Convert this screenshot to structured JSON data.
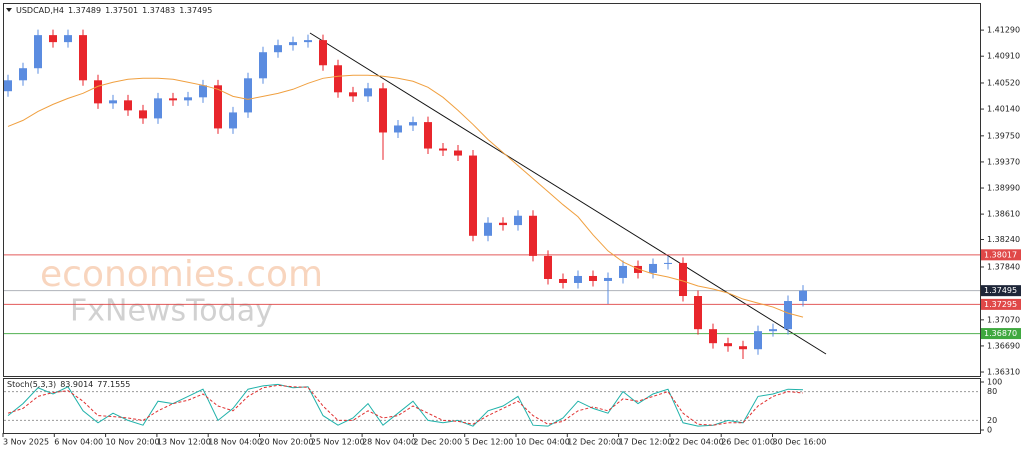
{
  "chart_data": {
    "type": "candlestick",
    "symbol": "USDCAD,H4",
    "quote": [
      1.37489,
      1.37501,
      1.37483,
      1.37495
    ],
    "ylim": [
      1.36252,
      1.41612
    ],
    "yticks": [
      {
        "value": 1.4129,
        "label": "1.41290"
      },
      {
        "value": 1.4091,
        "label": "1.40910"
      },
      {
        "value": 1.4052,
        "label": "1.40520"
      },
      {
        "value": 1.4014,
        "label": "1.40140"
      },
      {
        "value": 1.3975,
        "label": "1.39750"
      },
      {
        "value": 1.3937,
        "label": "1.39370"
      },
      {
        "value": 1.3899,
        "label": "1.38990"
      },
      {
        "value": 1.3861,
        "label": "1.38610"
      },
      {
        "value": 1.3824,
        "label": "1.38240"
      },
      {
        "value": 1.3784,
        "label": "1.37840"
      },
      {
        "value": 1.3707,
        "label": "1.37070"
      },
      {
        "value": 1.3669,
        "label": "1.36690"
      },
      {
        "value": 1.3631,
        "label": "1.36310"
      }
    ],
    "up_color": "#5b8ce0",
    "down_color": "#e8262c",
    "ohlc": [
      [
        1.404,
        1.40639,
        1.4032,
        1.40559
      ],
      [
        1.40559,
        1.40815,
        1.40479,
        1.40735
      ],
      [
        1.40735,
        1.41297,
        1.40655,
        1.41217
      ],
      [
        1.41217,
        1.41297,
        1.41035,
        1.41115
      ],
      [
        1.41115,
        1.41297,
        1.41035,
        1.41217
      ],
      [
        1.41217,
        1.41297,
        1.40479,
        1.40559
      ],
      [
        1.40559,
        1.40639,
        1.40143,
        1.40223
      ],
      [
        1.40223,
        1.40347,
        1.40143,
        1.40267
      ],
      [
        1.40267,
        1.40347,
        1.40041,
        1.40121
      ],
      [
        1.40121,
        1.40201,
        1.39924,
        1.40004
      ],
      [
        1.40004,
        1.40376,
        1.39924,
        1.40296
      ],
      [
        1.40296,
        1.40376,
        1.40187,
        1.40267
      ],
      [
        1.40267,
        1.40391,
        1.40187,
        1.40311
      ],
      [
        1.40311,
        1.40566,
        1.40231,
        1.40486
      ],
      [
        1.40486,
        1.40566,
        1.39778,
        1.39858
      ],
      [
        1.39858,
        1.40171,
        1.39778,
        1.40091
      ],
      [
        1.40091,
        1.40668,
        1.40011,
        1.40588
      ],
      [
        1.40588,
        1.41048,
        1.40508,
        1.40968
      ],
      [
        1.40968,
        1.41151,
        1.40888,
        1.41071
      ],
      [
        1.41071,
        1.41195,
        1.40991,
        1.41115
      ],
      [
        1.41115,
        1.41224,
        1.41035,
        1.41144
      ],
      [
        1.41144,
        1.41224,
        1.40698,
        1.40778
      ],
      [
        1.40778,
        1.40858,
        1.40304,
        1.40384
      ],
      [
        1.40384,
        1.40464,
        1.40245,
        1.40325
      ],
      [
        1.40325,
        1.40522,
        1.40245,
        1.40442
      ],
      [
        1.40442,
        1.40522,
        1.394,
        1.39799
      ],
      [
        1.39799,
        1.39981,
        1.39719,
        1.39901
      ],
      [
        1.39901,
        1.4003,
        1.39821,
        1.3995
      ],
      [
        1.3995,
        1.4003,
        1.39485,
        1.39565
      ],
      [
        1.39565,
        1.39645,
        1.39456,
        1.39536
      ],
      [
        1.39536,
        1.39616,
        1.39383,
        1.39463
      ],
      [
        1.39463,
        1.39543,
        1.38214,
        1.38294
      ],
      [
        1.38294,
        1.38564,
        1.38214,
        1.38484
      ],
      [
        1.38484,
        1.38564,
        1.3837,
        1.3845
      ],
      [
        1.3845,
        1.38666,
        1.3837,
        1.38586
      ],
      [
        1.38586,
        1.38666,
        1.37921,
        1.38001
      ],
      [
        1.38001,
        1.38081,
        1.37585,
        1.37665
      ],
      [
        1.37665,
        1.37745,
        1.37527,
        1.37607
      ],
      [
        1.37607,
        1.37789,
        1.37527,
        1.37709
      ],
      [
        1.37709,
        1.37789,
        1.37556,
        1.37636
      ],
      [
        1.37636,
        1.3776,
        1.373,
        1.3768
      ],
      [
        1.3768,
        1.37935,
        1.376,
        1.37855
      ],
      [
        1.37855,
        1.37935,
        1.37673,
        1.37753
      ],
      [
        1.37753,
        1.37964,
        1.37673,
        1.37884
      ],
      [
        1.37884,
        1.38,
        1.37804,
        1.37899
      ],
      [
        1.37899,
        1.37979,
        1.37337,
        1.37417
      ],
      [
        1.37417,
        1.37497,
        1.36854,
        1.36934
      ],
      [
        1.36934,
        1.37014,
        1.3665,
        1.3673
      ],
      [
        1.3673,
        1.3681,
        1.36606,
        1.36686
      ],
      [
        1.36686,
        1.36766,
        1.365,
        1.36642
      ],
      [
        1.36642,
        1.36985,
        1.36562,
        1.36905
      ],
      [
        1.36905,
        1.37014,
        1.36825,
        1.36934
      ],
      [
        1.36934,
        1.37424,
        1.36854,
        1.37344
      ],
      [
        1.37344,
        1.37575,
        1.37264,
        1.37495
      ]
    ],
    "ma": {
      "color": "#f0a040",
      "values": [
        1.39887,
        1.39975,
        1.40106,
        1.40208,
        1.40296,
        1.40369,
        1.40472,
        1.4053,
        1.40574,
        1.40588,
        1.40588,
        1.40574,
        1.4053,
        1.40486,
        1.40428,
        1.40325,
        1.40281,
        1.40325,
        1.40369,
        1.40428,
        1.40515,
        1.40588,
        1.40618,
        1.40632,
        1.40632,
        1.40618,
        1.40588,
        1.40545,
        1.40457,
        1.40311,
        1.40121,
        1.39916,
        1.39697,
        1.39507,
        1.39317,
        1.39127,
        1.38937,
        1.38747,
        1.38571,
        1.38308,
        1.38074,
        1.37914,
        1.37811,
        1.37738,
        1.37694,
        1.37636,
        1.37563,
        1.37519,
        1.37461,
        1.37373,
        1.37314,
        1.37256,
        1.37168,
        1.3711
      ]
    },
    "levels": [
      {
        "value": 1.38017,
        "color": "#e04848"
      },
      {
        "value": 1.37495,
        "color": "#1e2638"
      },
      {
        "value": 1.37295,
        "color": "#e04848"
      },
      {
        "value": 1.3687,
        "label": "1.36870",
        "color": "#3fa83f"
      }
    ],
    "watermark": [
      "economies.com",
      "FxNewsToday"
    ],
    "xlabels": [
      "3 Nov 2025",
      "6 Nov 04:00",
      "10 Nov 20:00",
      "13 Nov 12:00",
      "18 Nov 04:00",
      "20 Nov 20:00",
      "25 Nov 12:00",
      "28 Nov 04:00",
      "2 Dec 20:00",
      "5 Dec 12:00",
      "10 Dec 04:00",
      "12 Dec 20:00",
      "17 Dec 12:00",
      "22 Dec 04:00",
      "26 Dec 01:00",
      "30 Dec 16:00"
    ],
    "stoch": {
      "title": "Stoch(5,3,3)",
      "ylim": [
        0,
        100
      ],
      "yticks": [
        100,
        80,
        20,
        0
      ],
      "main": {
        "color": "#20b2aa",
        "values": [
          30,
          55,
          88,
          75,
          90,
          40,
          15,
          35,
          20,
          10,
          60,
          55,
          70,
          85,
          20,
          45,
          85,
          92,
          95,
          88,
          90,
          30,
          10,
          25,
          55,
          10,
          35,
          60,
          20,
          15,
          20,
          8,
          40,
          50,
          70,
          10,
          8,
          25,
          60,
          45,
          35,
          80,
          55,
          75,
          85,
          15,
          8,
          10,
          20,
          15,
          70,
          75,
          85,
          83.9014
        ]
      },
      "signal": {
        "color": "#e03030",
        "values": [
          35,
          45,
          70,
          78,
          82,
          60,
          30,
          28,
          25,
          20,
          40,
          55,
          62,
          75,
          50,
          40,
          70,
          88,
          93,
          90,
          89,
          50,
          20,
          20,
          40,
          25,
          30,
          50,
          35,
          20,
          18,
          12,
          30,
          45,
          60,
          30,
          12,
          18,
          40,
          48,
          40,
          65,
          60,
          70,
          80,
          35,
          12,
          10,
          15,
          15,
          50,
          70,
          80,
          77.1555
        ]
      }
    }
  }
}
